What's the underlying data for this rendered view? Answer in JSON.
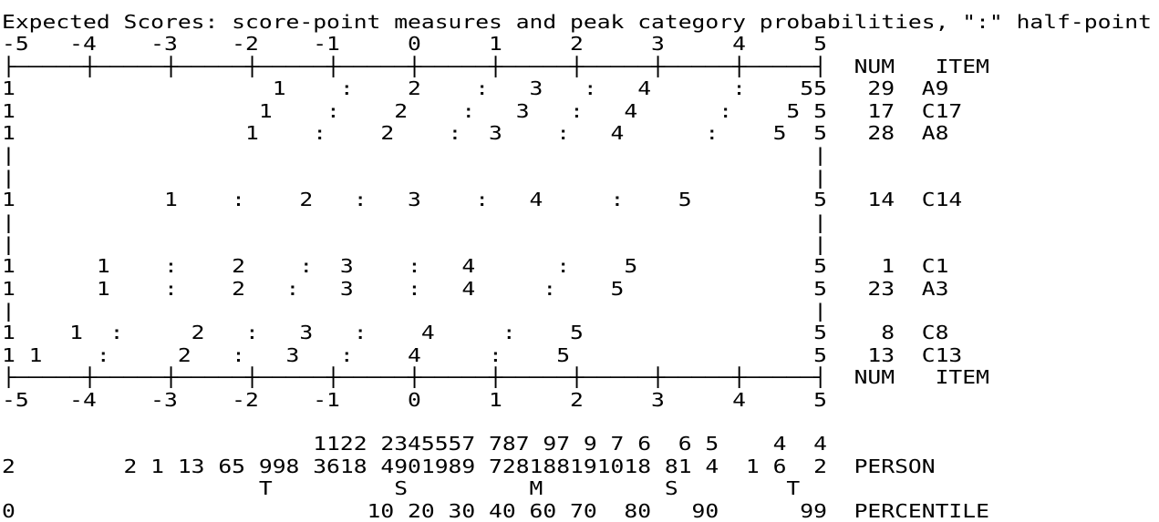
{
  "title": "Expected Scores: score-point measures and peak category probabilities, \":\" half-point",
  "plot": [
    "-5   -4    -3    -2    -1     0     1     2     3     4     5",
    "├─────┼─────┼─────┼─────┼─────┼─────┼─────┼─────┼─────┼─────┤  NUM   ITEM",
    "1                   1    :    2    :   3   :   4      :    55   29  A9",
    "1                  1    :    2    :   3   :   4      :    5 5   17  C17",
    "1                 1    :    2    :  3    :   4      :    5  5   28  A8",
    "|                                                           |",
    "|                                                           |",
    "1           1    :    2   :   3    :   4     :    5         5   14  C14",
    "|                                                           |",
    "|                                                           |",
    "1      1    :    2    :  3    :   4      :    5             5    1  C1",
    "1      1    :    2   :   3    :   4     :    5              5   23  A3",
    "|                                                           |",
    "1    1  :     2   :   3   :    4     :    5                 5    8  C8",
    "1 1    :     2   :   3   :    4     :    5                  5   13  C13",
    "├─────┼─────┼─────┼─────┼─────┼─────┼─────┼─────┼─────┼─────┤  NUM   ITEM",
    "-5   -4    -3    -2    -1     0     1     2     3     4     5"
  ],
  "distribution": [
    "                       1122 2345557 787 97 9 7 6  6 5    4  4",
    "2        2 1 13 65 998 3618 4901989 728188191018 81 4  1 6  2  PERSON",
    "                   T         S         M         S        T",
    "0                          10 20 30 40 60 70  80   90      99  PERCENTILE"
  ]
}
